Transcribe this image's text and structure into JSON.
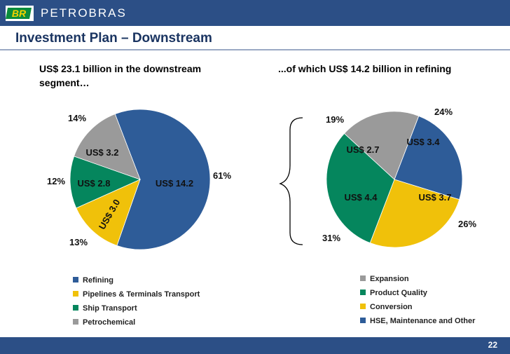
{
  "header": {
    "brand": "PETROBRAS",
    "logo_text": "BR",
    "title": "Investment Plan – Downstream"
  },
  "footer": {
    "page_number": "22"
  },
  "colors": {
    "blue": "#2e5c98",
    "yellow": "#f0c10a",
    "green": "#05865d",
    "gray": "#9a9a9a",
    "bar": "#2c4f86"
  },
  "chart_data": [
    {
      "type": "pie",
      "title": "US$ 23.1 billion in the downstream segment…",
      "slices": [
        {
          "label": "Refining",
          "value": 14.2,
          "value_label": "US$ 14.2",
          "percent_label": "61%",
          "color": "#2e5c98"
        },
        {
          "label": "Pipelines & Terminals Transport",
          "value": 3.0,
          "value_label": "US$ 3.0",
          "percent_label": "13%",
          "color": "#f0c10a"
        },
        {
          "label": "Ship Transport",
          "value": 2.8,
          "value_label": "US$ 2.8",
          "percent_label": "12%",
          "color": "#05865d"
        },
        {
          "label": "Petrochemical",
          "value": 3.2,
          "value_label": "US$ 3.2",
          "percent_label": "14%",
          "color": "#9a9a9a"
        }
      ]
    },
    {
      "type": "pie",
      "title": "...of which US$ 14.2 billion in refining",
      "slices": [
        {
          "label": "HSE, Maintenance and Other",
          "value": 3.4,
          "value_label": "US$ 3.4",
          "percent_label": "24%",
          "color": "#2e5c98"
        },
        {
          "label": "Conversion",
          "value": 3.7,
          "value_label": "US$ 3.7",
          "percent_label": "26%",
          "color": "#f0c10a"
        },
        {
          "label": "Product Quality",
          "value": 4.4,
          "value_label": "US$ 4.4",
          "percent_label": "31%",
          "color": "#05865d"
        },
        {
          "label": "Expansion",
          "value": 2.7,
          "value_label": "US$ 2.7",
          "percent_label": "19%",
          "color": "#9a9a9a"
        }
      ]
    }
  ],
  "legends": {
    "left": [
      {
        "label": "Refining",
        "color": "#2e5c98"
      },
      {
        "label": "Pipelines & Terminals Transport",
        "color": "#f0c10a"
      },
      {
        "label": "Ship Transport",
        "color": "#05865d"
      },
      {
        "label": "Petrochemical",
        "color": "#9a9a9a"
      }
    ],
    "right": [
      {
        "label": "Expansion",
        "color": "#9a9a9a"
      },
      {
        "label": "Product Quality",
        "color": "#05865d"
      },
      {
        "label": "Conversion",
        "color": "#f0c10a"
      },
      {
        "label": "HSE, Maintenance and Other",
        "color": "#2e5c98"
      }
    ]
  }
}
